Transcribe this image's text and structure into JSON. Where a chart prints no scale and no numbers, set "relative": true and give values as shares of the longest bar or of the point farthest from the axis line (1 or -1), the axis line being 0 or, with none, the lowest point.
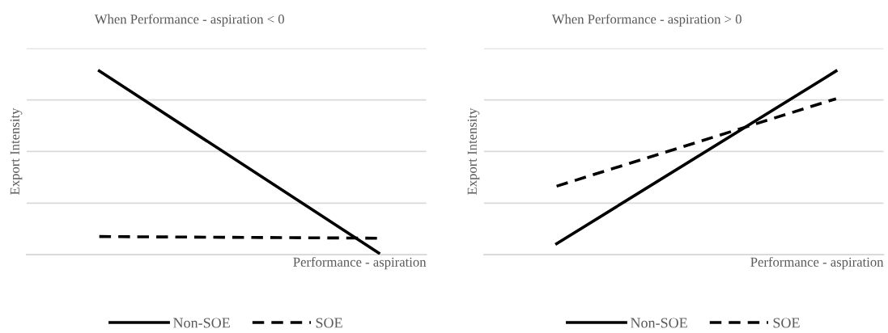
{
  "chart_data": [
    {
      "type": "line",
      "title": "When Performance - aspiration < 0",
      "xlabel": "Performance - aspiration",
      "ylabel": "Export Intensity",
      "categories": [
        null,
        null
      ],
      "relative": true,
      "grid": "y",
      "legend": "bottom",
      "tick_labels": false,
      "series": [
        {
          "name": "Non-SOE",
          "color": "#000000",
          "line_style": "solid",
          "values": [
            1,
            0.01
          ]
        },
        {
          "name": "SOE",
          "color": "#000000",
          "line_style": "dashed",
          "values": [
            0.099,
            0.09
          ]
        }
      ]
    },
    {
      "type": "line",
      "title": "When Performance - aspiration > 0",
      "xlabel": "Performance - aspiration",
      "ylabel": "Export Intensity",
      "categories": [
        null,
        null
      ],
      "relative": true,
      "grid": "y",
      "legend": "bottom",
      "tick_labels": false,
      "series": [
        {
          "name": "Non-SOE",
          "color": "#000000",
          "line_style": "solid",
          "values": [
            0.06,
            1
          ]
        },
        {
          "name": "SOE",
          "color": "#000000",
          "line_style": "dashed",
          "values": [
            0.373,
            0.849
          ]
        }
      ]
    }
  ]
}
